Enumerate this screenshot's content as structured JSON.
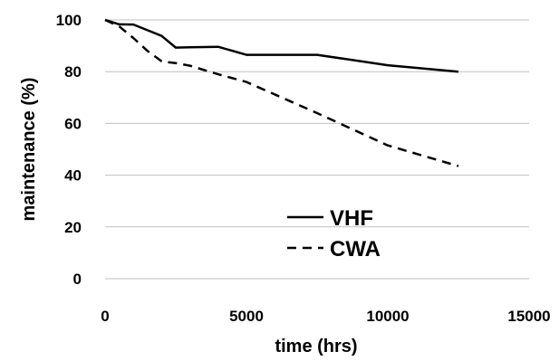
{
  "chart_data": {
    "type": "line",
    "title": "",
    "xlabel": "time (hrs)",
    "ylabel": "maintenance (%)",
    "xlim": [
      0,
      15000
    ],
    "ylim": [
      0,
      100
    ],
    "x_ticks": [
      0,
      5000,
      10000,
      15000
    ],
    "y_ticks": [
      0,
      20,
      40,
      60,
      80,
      100
    ],
    "grid": "horizontal",
    "legend": "center-bottom",
    "series": [
      {
        "name": "VHF",
        "style": "solid",
        "color": "#000000",
        "x": [
          0,
          500,
          1000,
          1500,
          2000,
          2500,
          3000,
          4000,
          5000,
          6000,
          7500,
          10000,
          12500
        ],
        "y": [
          100,
          98.3,
          98.2,
          96,
          93.8,
          89.3,
          89.4,
          89.6,
          86.5,
          86.5,
          86.5,
          82.5,
          80
        ]
      },
      {
        "name": "CWA",
        "style": "dashed",
        "color": "#000000",
        "x": [
          0,
          500,
          1000,
          1500,
          2000,
          2500,
          3000,
          4000,
          5000,
          7500,
          10000,
          12500
        ],
        "y": [
          100,
          97.5,
          93,
          88,
          84,
          83.3,
          82.3,
          79,
          76,
          64,
          51.5,
          43.5
        ]
      }
    ]
  }
}
